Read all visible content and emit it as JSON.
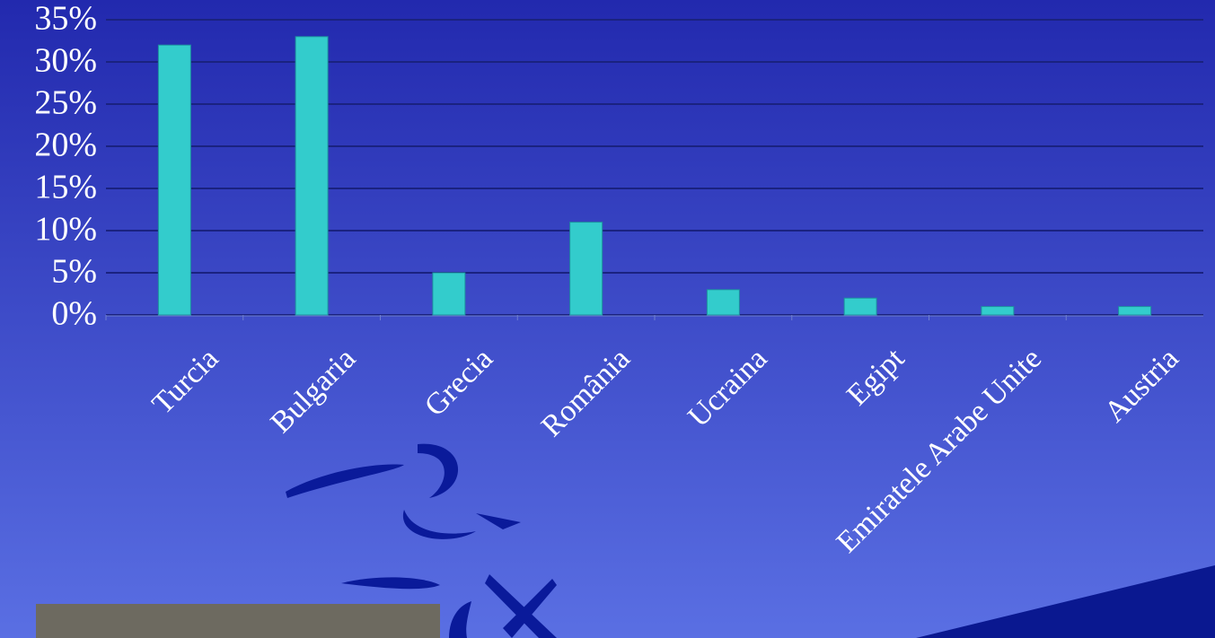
{
  "chart_data": {
    "type": "bar",
    "categories": [
      "Turcia",
      "Bulgaria",
      "Grecia",
      "România",
      "Ucraina",
      "Egipt",
      "Emiratele Arabe Unite",
      "Austria"
    ],
    "values": [
      32,
      33,
      5,
      11,
      3,
      2,
      1,
      1
    ],
    "color": "#33cccc",
    "ylim": [
      0,
      35
    ],
    "yticks": [
      {
        "value": 0,
        "label": "0%"
      },
      {
        "value": 5,
        "label": "5%"
      },
      {
        "value": 10,
        "label": "10%"
      },
      {
        "value": 15,
        "label": "15%"
      },
      {
        "value": 20,
        "label": "20%"
      },
      {
        "value": 25,
        "label": "25%"
      },
      {
        "value": 30,
        "label": "30%"
      },
      {
        "value": 35,
        "label": "35%"
      }
    ],
    "grid": true
  }
}
